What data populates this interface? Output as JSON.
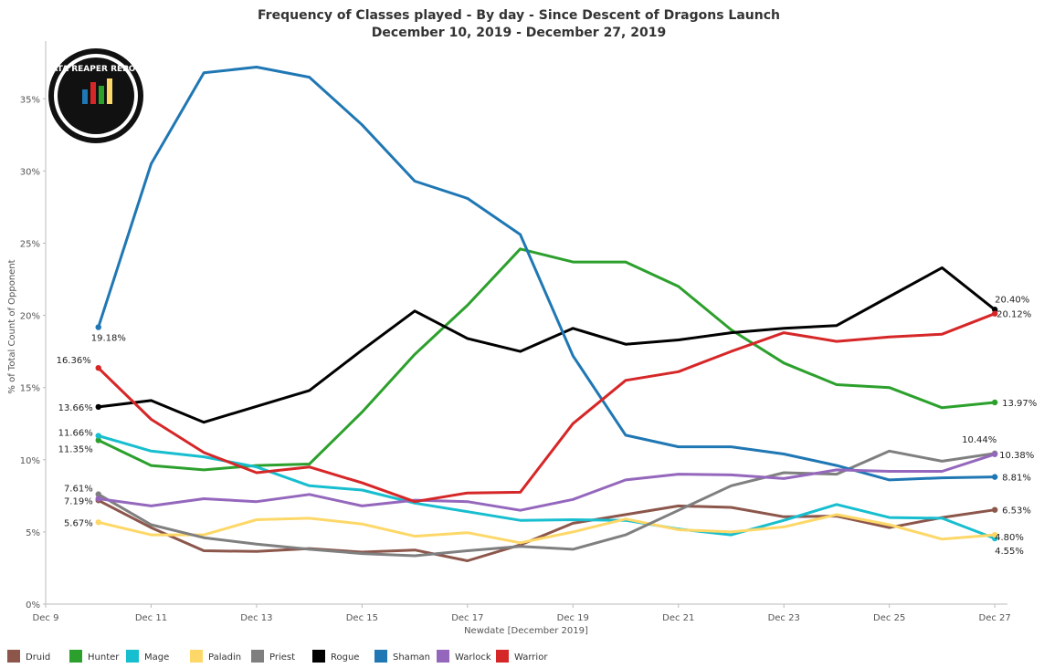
{
  "chart_data": {
    "type": "line",
    "title": "Frequency of Classes played - By day - Since Descent of Dragons Launch",
    "subtitle": "December 10, 2019 - December 27, 2019",
    "xlabel": "Newdate [December 2019]",
    "ylabel": "% of Total Count of Opponent",
    "x": [
      "Dec 10",
      "Dec 11",
      "Dec 12",
      "Dec 13",
      "Dec 14",
      "Dec 15",
      "Dec 16",
      "Dec 17",
      "Dec 18",
      "Dec 19",
      "Dec 20",
      "Dec 21",
      "Dec 22",
      "Dec 23",
      "Dec 24",
      "Dec 25",
      "Dec 26",
      "Dec 27"
    ],
    "xlim": [
      "Dec 9",
      "Dec 27"
    ],
    "x_ticks": [
      "Dec 9",
      "Dec 11",
      "Dec 13",
      "Dec 15",
      "Dec 17",
      "Dec 19",
      "Dec 21",
      "Dec 23",
      "Dec 25",
      "Dec 27"
    ],
    "ylim": [
      0,
      39
    ],
    "y_ticks": [
      0,
      5,
      10,
      15,
      20,
      25,
      30,
      35
    ],
    "y_tick_labels": [
      "0%",
      "5%",
      "10%",
      "15%",
      "20%",
      "25%",
      "30%",
      "35%"
    ],
    "grid": false,
    "legend_placement": "bottom",
    "logo_text": "DATA REAPER REPORT",
    "series": [
      {
        "name": "Druid",
        "color": "#8c564b",
        "values": [
          7.19,
          5.3,
          3.7,
          3.65,
          3.85,
          3.6,
          3.75,
          3.0,
          4.1,
          5.6,
          6.2,
          6.8,
          6.7,
          6.05,
          6.1,
          5.3,
          6.0,
          6.53
        ],
        "start_label": "7.19%",
        "end_label": "6.53%"
      },
      {
        "name": "Hunter",
        "color": "#2ca02c",
        "values": [
          11.35,
          9.6,
          9.3,
          9.6,
          9.7,
          13.3,
          17.3,
          20.7,
          24.6,
          23.7,
          23.7,
          22.0,
          19.0,
          16.7,
          15.2,
          15.0,
          13.6,
          13.97
        ],
        "start_label": "11.35%",
        "end_label": "13.97%"
      },
      {
        "name": "Mage",
        "color": "#17becf",
        "values": [
          11.66,
          10.6,
          10.2,
          9.5,
          8.2,
          7.9,
          7.0,
          6.4,
          5.8,
          5.85,
          5.8,
          5.2,
          4.8,
          5.8,
          6.9,
          6.0,
          5.95,
          4.55
        ],
        "start_label": "11.66%",
        "end_label": "4.55%"
      },
      {
        "name": "Paladin",
        "color": "#fdd868",
        "values": [
          5.67,
          4.8,
          4.8,
          5.85,
          5.95,
          5.55,
          4.7,
          4.95,
          4.25,
          5.0,
          5.9,
          5.15,
          5.0,
          5.35,
          6.2,
          5.5,
          4.5,
          4.8
        ],
        "start_label": "5.67%",
        "end_label": "4.80%"
      },
      {
        "name": "Priest",
        "color": "#7f7f7f",
        "values": [
          7.61,
          5.5,
          4.6,
          4.15,
          3.8,
          3.5,
          3.35,
          3.7,
          4.0,
          3.8,
          4.8,
          6.5,
          8.2,
          9.1,
          9.0,
          10.6,
          9.9,
          10.44
        ],
        "start_label": "7.61%",
        "end_label": "10.44%"
      },
      {
        "name": "Rogue",
        "color": "#000000",
        "values": [
          13.66,
          14.1,
          12.6,
          13.7,
          14.8,
          17.6,
          20.3,
          18.4,
          17.5,
          19.1,
          18.0,
          18.3,
          18.8,
          19.1,
          19.3,
          21.3,
          23.3,
          20.4
        ],
        "start_label": "13.66%",
        "end_label": "20.40%"
      },
      {
        "name": "Shaman",
        "color": "#1f77b4",
        "values": [
          19.18,
          30.5,
          36.8,
          37.2,
          36.5,
          33.2,
          29.3,
          28.1,
          25.6,
          17.2,
          11.7,
          10.9,
          10.9,
          10.4,
          9.6,
          8.6,
          8.75,
          8.81
        ],
        "start_label": "19.18%",
        "end_label": "8.81%"
      },
      {
        "name": "Warlock",
        "color": "#9467bd",
        "values": [
          7.3,
          6.8,
          7.3,
          7.1,
          7.6,
          6.8,
          7.2,
          7.1,
          6.5,
          7.25,
          8.6,
          9.0,
          8.95,
          8.7,
          9.3,
          9.2,
          9.2,
          10.38
        ],
        "end_label": "10.38%"
      },
      {
        "name": "Warrior",
        "color": "#d62728",
        "values": [
          16.36,
          12.8,
          10.5,
          9.1,
          9.5,
          8.4,
          7.1,
          7.7,
          7.75,
          12.5,
          15.5,
          16.1,
          17.5,
          18.8,
          18.2,
          18.5,
          18.7,
          20.12
        ],
        "start_label": "16.36%",
        "end_label": "20.12%"
      }
    ]
  }
}
